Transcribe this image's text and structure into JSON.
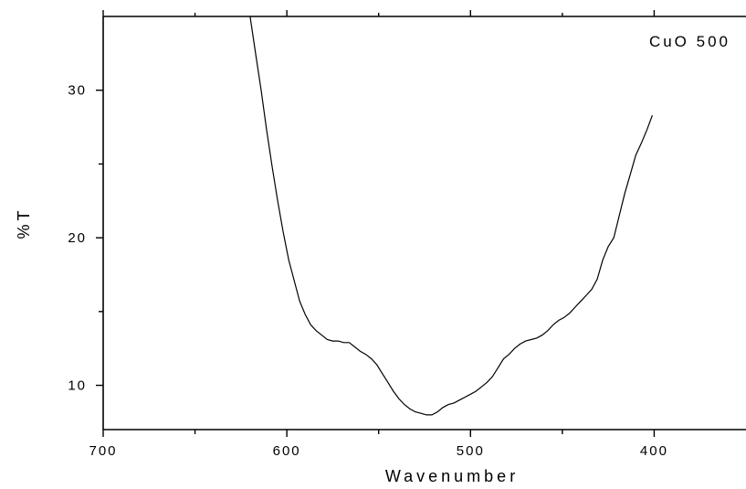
{
  "chart_data": {
    "type": "line",
    "title": "",
    "xlabel": "Wavenumber",
    "ylabel": "%T",
    "annotation": "CuO 500",
    "xlim": [
      700,
      350
    ],
    "ylim": [
      7.0,
      35.0
    ],
    "x_reversed": true,
    "x_ticks": [
      700,
      600,
      500,
      400
    ],
    "x_tick_labels": [
      "700",
      "600",
      "500",
      "400"
    ],
    "x_minor_ticks": [
      650,
      550,
      450
    ],
    "y_ticks": [
      10,
      20,
      30
    ],
    "y_tick_labels": [
      "10",
      "20",
      "30"
    ],
    "y_minor_ticks": [
      15,
      25
    ],
    "grid": false,
    "series": [
      {
        "x": [
          620,
          617,
          614,
          611,
          608,
          605,
          602,
          599,
          596,
          593,
          590,
          587,
          584,
          581,
          578,
          575,
          572,
          569,
          566,
          563,
          560,
          557,
          554,
          551,
          548,
          545,
          542,
          539,
          536,
          533,
          530,
          527,
          524,
          521,
          518,
          515,
          512,
          509,
          506,
          503,
          500,
          497,
          494,
          491,
          488,
          485,
          482,
          479,
          476,
          473,
          470,
          467,
          464,
          461,
          458,
          455,
          452,
          449,
          446,
          443,
          440,
          437,
          434,
          431,
          428,
          425,
          422,
          419,
          416,
          413,
          410,
          407,
          404,
          401
        ],
        "y": [
          35.0,
          32.5,
          30.0,
          27.3,
          24.8,
          22.5,
          20.4,
          18.5,
          17.1,
          15.7,
          14.8,
          14.1,
          13.7,
          13.4,
          13.1,
          13.0,
          13.0,
          12.9,
          12.9,
          12.6,
          12.3,
          12.1,
          11.8,
          11.4,
          10.8,
          10.2,
          9.6,
          9.1,
          8.7,
          8.4,
          8.2,
          8.1,
          8.0,
          8.0,
          8.2,
          8.5,
          8.7,
          8.8,
          9.0,
          9.2,
          9.4,
          9.6,
          9.9,
          10.2,
          10.6,
          11.2,
          11.8,
          12.1,
          12.5,
          12.8,
          13.0,
          13.1,
          13.2,
          13.4,
          13.7,
          14.1,
          14.4,
          14.6,
          14.9,
          15.3,
          15.7,
          16.1,
          16.5,
          17.2,
          18.5,
          19.4,
          20.0,
          21.5,
          23.0,
          24.3,
          25.6,
          26.4,
          27.3,
          28.3
        ]
      }
    ]
  }
}
